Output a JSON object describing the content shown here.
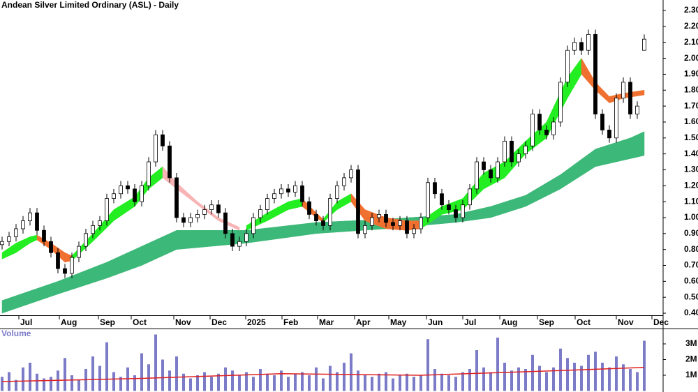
{
  "chart_data": [
    {
      "type": "candlestick",
      "title": "Andean Silver Limited Ordinary (ASL) - Daily",
      "xlim": [
        -0.3,
        94.7
      ],
      "ylim": [
        0.387,
        2.366
      ],
      "xticks": [
        {
          "value": 2.4,
          "label": "Jul"
        },
        {
          "value": 8.2,
          "label": "Aug"
        },
        {
          "value": 13.8,
          "label": "Sep"
        },
        {
          "value": 18.5,
          "label": "Oct"
        },
        {
          "value": 24.6,
          "label": "Nov"
        },
        {
          "value": 29.8,
          "label": "Dec"
        },
        {
          "value": 34.9,
          "label": "2025"
        },
        {
          "value": 40.1,
          "label": "Feb"
        },
        {
          "value": 45.2,
          "label": "Mar"
        },
        {
          "value": 50.5,
          "label": "Apr"
        },
        {
          "value": 55.4,
          "label": "May"
        },
        {
          "value": 60.8,
          "label": "Jun"
        },
        {
          "value": 66,
          "label": "Jul"
        },
        {
          "value": 71.3,
          "label": "Aug"
        },
        {
          "value": 76.7,
          "label": "Sep"
        },
        {
          "value": 82.1,
          "label": "Oct"
        },
        {
          "value": 88,
          "label": "Nov"
        },
        {
          "value": 93.1,
          "label": "Dec"
        }
      ],
      "yticks": [
        {
          "value": 0.4,
          "label": "0.40"
        },
        {
          "value": 0.5,
          "label": "0.50"
        },
        {
          "value": 0.6,
          "label": "0.60"
        },
        {
          "value": 0.7,
          "label": "0.70"
        },
        {
          "value": 0.8,
          "label": "0.80"
        },
        {
          "value": 0.9,
          "label": "0.90"
        },
        {
          "value": 1.0,
          "label": "1.00"
        },
        {
          "value": 1.1,
          "label": "1.10"
        },
        {
          "value": 1.2,
          "label": "1.20"
        },
        {
          "value": 1.3,
          "label": "1.30"
        },
        {
          "value": 1.4,
          "label": "1.40"
        },
        {
          "value": 1.5,
          "label": "1.50"
        },
        {
          "value": 1.6,
          "label": "1.60"
        },
        {
          "value": 1.7,
          "label": "1.70"
        },
        {
          "value": 1.8,
          "label": "1.80"
        },
        {
          "value": 1.9,
          "label": "1.90"
        },
        {
          "value": 2.0,
          "label": "2.00"
        },
        {
          "value": 2.1,
          "label": "2.10"
        },
        {
          "value": 2.2,
          "label": "2.20"
        },
        {
          "value": 2.3,
          "label": "2.30"
        }
      ],
      "x": [
        0,
        1,
        2,
        3,
        4,
        5,
        6,
        7,
        8,
        9,
        10,
        11,
        12,
        13,
        14,
        15,
        16,
        17,
        18,
        19,
        20,
        21,
        22,
        23,
        24,
        25,
        26,
        27,
        28,
        29,
        30,
        31,
        32,
        33,
        34,
        35,
        36,
        37,
        38,
        39,
        40,
        41,
        42,
        43,
        44,
        45,
        46,
        47,
        48,
        49,
        50,
        51,
        52,
        53,
        54,
        55,
        56,
        57,
        58,
        59,
        60,
        61,
        62,
        63,
        64,
        65,
        66,
        67,
        68,
        69,
        70,
        71,
        72,
        73,
        74,
        75,
        76,
        77,
        78,
        79,
        80,
        81,
        82,
        83,
        84,
        85,
        86,
        87,
        88,
        89,
        90,
        91,
        92
      ],
      "open": [
        0.83,
        0.85,
        0.88,
        0.93,
        0.98,
        1.03,
        0.92,
        0.85,
        0.78,
        0.68,
        0.65,
        0.75,
        0.82,
        0.9,
        0.95,
        0.98,
        1.12,
        1.15,
        1.2,
        1.18,
        1.1,
        1.2,
        1.35,
        1.52,
        1.45,
        1.25,
        1.0,
        0.97,
        1.0,
        1.02,
        1.05,
        1.08,
        1.03,
        0.9,
        0.82,
        0.85,
        0.9,
        1.0,
        1.05,
        1.12,
        1.15,
        1.18,
        1.16,
        1.2,
        1.1,
        1.02,
        0.98,
        0.95,
        1.12,
        1.2,
        1.25,
        1.3,
        0.9,
        0.95,
        1.0,
        1.02,
        0.97,
        0.95,
        0.98,
        0.9,
        0.93,
        1.0,
        1.22,
        1.15,
        1.08,
        1.05,
        1.0,
        1.08,
        1.18,
        1.35,
        1.3,
        1.25,
        1.35,
        1.48,
        1.35,
        1.4,
        1.45,
        1.65,
        1.55,
        1.52,
        1.6,
        1.85,
        2.05,
        2.1,
        2.05,
        2.15,
        1.65,
        1.55,
        1.5,
        1.75,
        1.85,
        1.65,
        2.05
      ],
      "high": [
        0.88,
        0.91,
        0.96,
        1.01,
        1.06,
        1.06,
        0.95,
        0.88,
        0.81,
        0.71,
        0.78,
        0.85,
        0.93,
        0.98,
        1.01,
        1.15,
        1.18,
        1.23,
        1.23,
        1.21,
        1.23,
        1.38,
        1.55,
        1.55,
        1.48,
        1.28,
        1.03,
        1.03,
        1.05,
        1.08,
        1.11,
        1.11,
        1.06,
        0.93,
        0.88,
        0.93,
        1.03,
        1.08,
        1.15,
        1.18,
        1.21,
        1.21,
        1.23,
        1.23,
        1.13,
        1.05,
        1.01,
        1.15,
        1.23,
        1.28,
        1.33,
        1.33,
        0.98,
        1.03,
        1.05,
        1.05,
        1.0,
        1.01,
        1.01,
        0.96,
        1.03,
        1.25,
        1.25,
        1.18,
        1.11,
        1.08,
        1.11,
        1.21,
        1.38,
        1.38,
        1.33,
        1.38,
        1.51,
        1.51,
        1.43,
        1.48,
        1.68,
        1.68,
        1.58,
        1.63,
        1.88,
        2.08,
        2.13,
        2.13,
        2.18,
        2.18,
        1.68,
        1.58,
        1.78,
        1.88,
        1.88,
        1.73,
        2.15
      ],
      "low": [
        0.8,
        0.82,
        0.85,
        0.9,
        0.95,
        0.89,
        0.82,
        0.75,
        0.65,
        0.62,
        0.62,
        0.72,
        0.79,
        0.87,
        0.92,
        0.95,
        1.09,
        1.12,
        1.15,
        1.07,
        1.07,
        1.17,
        1.32,
        1.42,
        1.22,
        0.97,
        0.94,
        0.94,
        0.97,
        0.99,
        1.02,
        1.0,
        0.87,
        0.79,
        0.79,
        0.82,
        0.87,
        0.97,
        1.02,
        1.09,
        1.12,
        1.13,
        1.13,
        1.07,
        0.99,
        0.95,
        0.92,
        0.92,
        1.09,
        1.17,
        1.22,
        0.87,
        0.87,
        0.92,
        0.97,
        0.94,
        0.92,
        0.92,
        0.87,
        0.87,
        0.9,
        0.97,
        1.12,
        1.05,
        1.02,
        0.97,
        0.97,
        1.05,
        1.15,
        1.27,
        1.22,
        1.22,
        1.32,
        1.32,
        1.32,
        1.37,
        1.42,
        1.52,
        1.49,
        1.49,
        1.57,
        1.82,
        2.02,
        2.02,
        2.02,
        1.62,
        1.52,
        1.47,
        1.47,
        1.72,
        1.62,
        1.62,
        2.05
      ],
      "close": [
        0.85,
        0.88,
        0.93,
        0.98,
        1.03,
        0.92,
        0.85,
        0.78,
        0.68,
        0.65,
        0.75,
        0.82,
        0.9,
        0.95,
        0.98,
        1.12,
        1.15,
        1.2,
        1.18,
        1.1,
        1.2,
        1.35,
        1.52,
        1.45,
        1.25,
        1.0,
        0.97,
        1.0,
        1.02,
        1.05,
        1.08,
        1.03,
        0.9,
        0.82,
        0.85,
        0.9,
        1.0,
        1.05,
        1.12,
        1.15,
        1.18,
        1.16,
        1.2,
        1.1,
        1.02,
        0.98,
        0.95,
        1.12,
        1.2,
        1.25,
        1.3,
        0.9,
        0.95,
        1.0,
        1.02,
        0.97,
        0.95,
        0.98,
        0.9,
        0.93,
        1.0,
        1.22,
        1.15,
        1.08,
        1.05,
        1.0,
        1.08,
        1.18,
        1.35,
        1.3,
        1.25,
        1.35,
        1.48,
        1.35,
        1.4,
        1.45,
        1.65,
        1.55,
        1.52,
        1.6,
        1.85,
        2.05,
        2.1,
        2.05,
        2.15,
        1.65,
        1.55,
        1.5,
        1.75,
        1.85,
        1.65,
        1.7,
        2.12
      ],
      "ribbons": [
        {
          "color": "#3cb878",
          "x": [
            0,
            8,
            15,
            20,
            25,
            35,
            45,
            55,
            65,
            70,
            75,
            80,
            85,
            90,
            92
          ],
          "lower": [
            0.4,
            0.52,
            0.62,
            0.7,
            0.8,
            0.84,
            0.9,
            0.93,
            0.97,
            1.0,
            1.07,
            1.18,
            1.32,
            1.37,
            1.39
          ],
          "upper": [
            0.48,
            0.6,
            0.72,
            0.82,
            0.92,
            0.92,
            0.97,
            0.99,
            1.02,
            1.07,
            1.14,
            1.27,
            1.43,
            1.5,
            1.54
          ]
        },
        {
          "color": "#22ee22",
          "x": [
            0,
            2,
            4,
            5
          ],
          "lower": [
            0.74,
            0.78,
            0.84,
            0.86
          ],
          "upper": [
            0.78,
            0.84,
            0.88,
            0.89
          ]
        },
        {
          "color": "#f07030",
          "x": [
            5,
            7,
            9,
            10
          ],
          "lower": [
            0.86,
            0.8,
            0.72,
            0.73
          ],
          "upper": [
            0.89,
            0.84,
            0.78,
            0.76
          ]
        },
        {
          "color": "#22ee22",
          "x": [
            10,
            13,
            16,
            19,
            21,
            23
          ],
          "lower": [
            0.73,
            0.85,
            0.98,
            1.07,
            1.18,
            1.25
          ],
          "upper": [
            0.76,
            0.9,
            1.05,
            1.13,
            1.25,
            1.32
          ]
        },
        {
          "color": "#f8b4b4",
          "x": [
            23,
            25,
            28,
            31,
            34
          ],
          "lower": [
            1.25,
            1.18,
            1.08,
            0.98,
            0.92
          ],
          "upper": [
            1.32,
            1.22,
            1.1,
            1.0,
            0.94
          ]
        },
        {
          "color": "#22ee22",
          "x": [
            35,
            38,
            41,
            43
          ],
          "lower": [
            0.92,
            0.98,
            1.05,
            1.07
          ],
          "upper": [
            0.95,
            1.03,
            1.1,
            1.12
          ]
        },
        {
          "color": "#f07030",
          "x": [
            43,
            45,
            46
          ],
          "lower": [
            1.07,
            1.0,
            0.97
          ],
          "upper": [
            1.12,
            1.03,
            0.99
          ]
        },
        {
          "color": "#22ee22",
          "x": [
            46,
            48,
            50
          ],
          "lower": [
            0.97,
            1.05,
            1.1
          ],
          "upper": [
            0.99,
            1.1,
            1.15
          ]
        },
        {
          "color": "#f07030",
          "x": [
            50,
            52,
            55,
            58,
            60
          ],
          "lower": [
            1.1,
            0.98,
            0.93,
            0.92,
            0.93
          ],
          "upper": [
            1.15,
            1.05,
            1.0,
            0.98,
            0.98
          ]
        },
        {
          "color": "#22ee22",
          "x": [
            60,
            63,
            66,
            69,
            72,
            75,
            78,
            81,
            83
          ],
          "lower": [
            0.93,
            1.02,
            1.05,
            1.18,
            1.25,
            1.4,
            1.5,
            1.75,
            1.9
          ],
          "upper": [
            0.98,
            1.07,
            1.12,
            1.28,
            1.35,
            1.48,
            1.6,
            1.88,
            2.0
          ]
        },
        {
          "color": "#f07030",
          "x": [
            83,
            85,
            87,
            89,
            92
          ],
          "lower": [
            1.9,
            1.8,
            1.72,
            1.75,
            1.77
          ],
          "upper": [
            2.0,
            1.85,
            1.76,
            1.78,
            1.8
          ]
        }
      ]
    },
    {
      "type": "bar",
      "title": "Volume",
      "color": "#7b7bc8",
      "xlim": [
        -0.3,
        94.7
      ],
      "ylim": [
        0,
        3890000
      ],
      "yticks": [
        {
          "value": 1000000,
          "label": "1M"
        },
        {
          "value": 2000000,
          "label": "2M"
        },
        {
          "value": 3000000,
          "label": "3M"
        }
      ],
      "values": [
        900000,
        1200000,
        700000,
        1500000,
        1800000,
        1100000,
        800000,
        900000,
        1300000,
        2100000,
        1000000,
        700000,
        1400000,
        2200000,
        1600000,
        3100000,
        1200000,
        900000,
        1500000,
        1000000,
        2400000,
        1700000,
        3600000,
        2000000,
        1300000,
        2200000,
        1100000,
        800000,
        1000000,
        1200000,
        900000,
        1100000,
        1500000,
        1300000,
        1000000,
        1200000,
        900000,
        1400000,
        1100000,
        1000000,
        1300000,
        900000,
        1100000,
        1200000,
        1000000,
        1500000,
        800000,
        1600000,
        1200000,
        1800000,
        2400000,
        1300000,
        1000000,
        900000,
        1100000,
        1200000,
        800000,
        1000000,
        1100000,
        900000,
        1000000,
        3300000,
        1400000,
        1100000,
        1000000,
        900000,
        1200000,
        1400000,
        2600000,
        1500000,
        1200000,
        3400000,
        1800000,
        1300000,
        1500000,
        1400000,
        2300000,
        1600000,
        1200000,
        1500000,
        2700000,
        2100000,
        1800000,
        1600000,
        2300000,
        2500000,
        1800000,
        1500000,
        2200000,
        1700000,
        1400000,
        1200000,
        3200000
      ],
      "average": {
        "color": "#e02020",
        "x": [
          0,
          20,
          40,
          60,
          80,
          92
        ],
        "values": [
          600000,
          800000,
          1100000,
          1000000,
          1300000,
          1500000
        ]
      }
    }
  ]
}
